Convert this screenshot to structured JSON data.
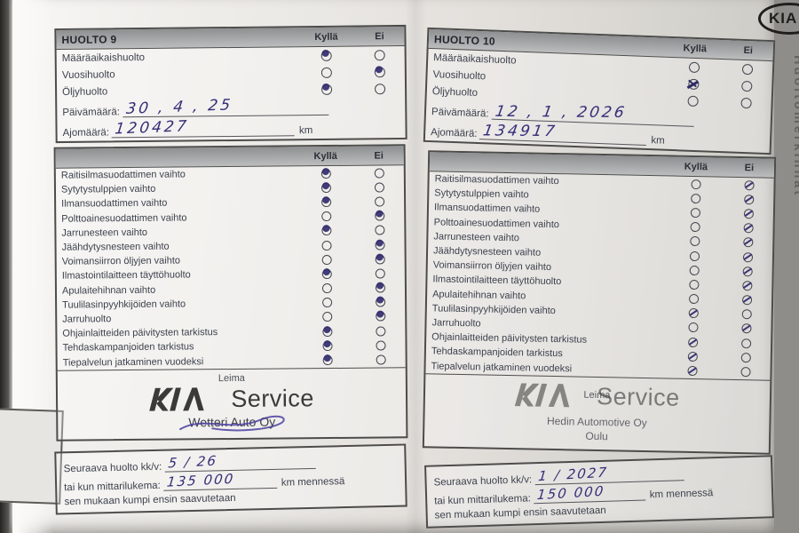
{
  "colors": {
    "paper": "#eae8e4",
    "background": "#8f8d89",
    "pen": "#352e78",
    "border": "#4c4c4a",
    "header_bar": "#a5a6a8"
  },
  "edge": {
    "vertical_label": "Huoltomerkinnät",
    "kia_oval_label": "KIA",
    "neighbor_fragment_text": "sä"
  },
  "labels": {
    "kylla": "Kyllä",
    "ei": "Ei",
    "paivamaara": "Päivämäärä:",
    "ajomaara": "Ajomäärä:",
    "km": "km",
    "leima": "Leima",
    "service": "Service",
    "seuraava": "Seuraava huolto kk/v:",
    "tai_kun": "tai kun mittarilukema:",
    "km_mennessa": "km mennessä",
    "sen_mukaan": "sen mukaan kumpi ensin saavutetaan",
    "kia_logo_icon": "KIA"
  },
  "top_item_labels": [
    "Määräaikaishuolto",
    "Vuosihuolto",
    "Öljyhuolto"
  ],
  "checklist_labels": [
    "Raitisilmasuodattimen vaihto",
    "Sytytystulppien vaihto",
    "Ilmansuodattimen vaihto",
    "Polttoainesuodattimen vaihto",
    "Jarrunesteen vaihto",
    "Jäähdytysnesteen vaihto",
    "Voimansiirron öljyjen vaihto",
    "Ilmastointilaitteen täyttöhuolto",
    "Apulaitehihnan vaihto",
    "Tuulilasinpyyhkijöiden vaihto",
    "Jarruhuolto",
    "Ohjainlaitteiden päivitysten tarkistus",
    "Tehdaskampanjoiden tarkistus",
    "Tiepalvelun jatkaminen vuodeksi"
  ],
  "pages": [
    {
      "title": "HUOLTO 9",
      "mark_style": "dot",
      "top_marks": [
        "kylla",
        "ei",
        "kylla"
      ],
      "top_mark_styles": [
        "dot",
        "dot",
        "dot"
      ],
      "date_handwritten": "30 , 4 , 25",
      "odometer_handwritten": "120427",
      "checklist_marks": [
        "kylla",
        "kylla",
        "kylla",
        "ei",
        "kylla",
        "ei",
        "ei",
        "kylla",
        "ei",
        "ei",
        "ei",
        "kylla",
        "kylla",
        "kylla"
      ],
      "stamp": {
        "dealer": "Wetteri Auto Oy",
        "city": "",
        "has_pen_scribble": true
      },
      "next_service": {
        "date": "5 / 26",
        "odometer": "135 000"
      }
    },
    {
      "title": "HUOLTO 10",
      "mark_style": "slash",
      "top_marks": [
        null,
        "kylla",
        null
      ],
      "top_mark_styles": [
        null,
        "x",
        null
      ],
      "date_handwritten": "12 , 1 , 2026",
      "odometer_handwritten": "134917",
      "checklist_marks": [
        "ei",
        "ei",
        "ei",
        "ei",
        "ei",
        "ei",
        "ei",
        "ei",
        "ei",
        "kylla",
        "ei",
        "kylla",
        "kylla",
        "kylla"
      ],
      "stamp": {
        "dealer": "Hedin Automotive Oy",
        "city": "Oulu",
        "has_pen_scribble": false
      },
      "next_service": {
        "date": "1 / 2027",
        "odometer": "150 000"
      }
    }
  ]
}
